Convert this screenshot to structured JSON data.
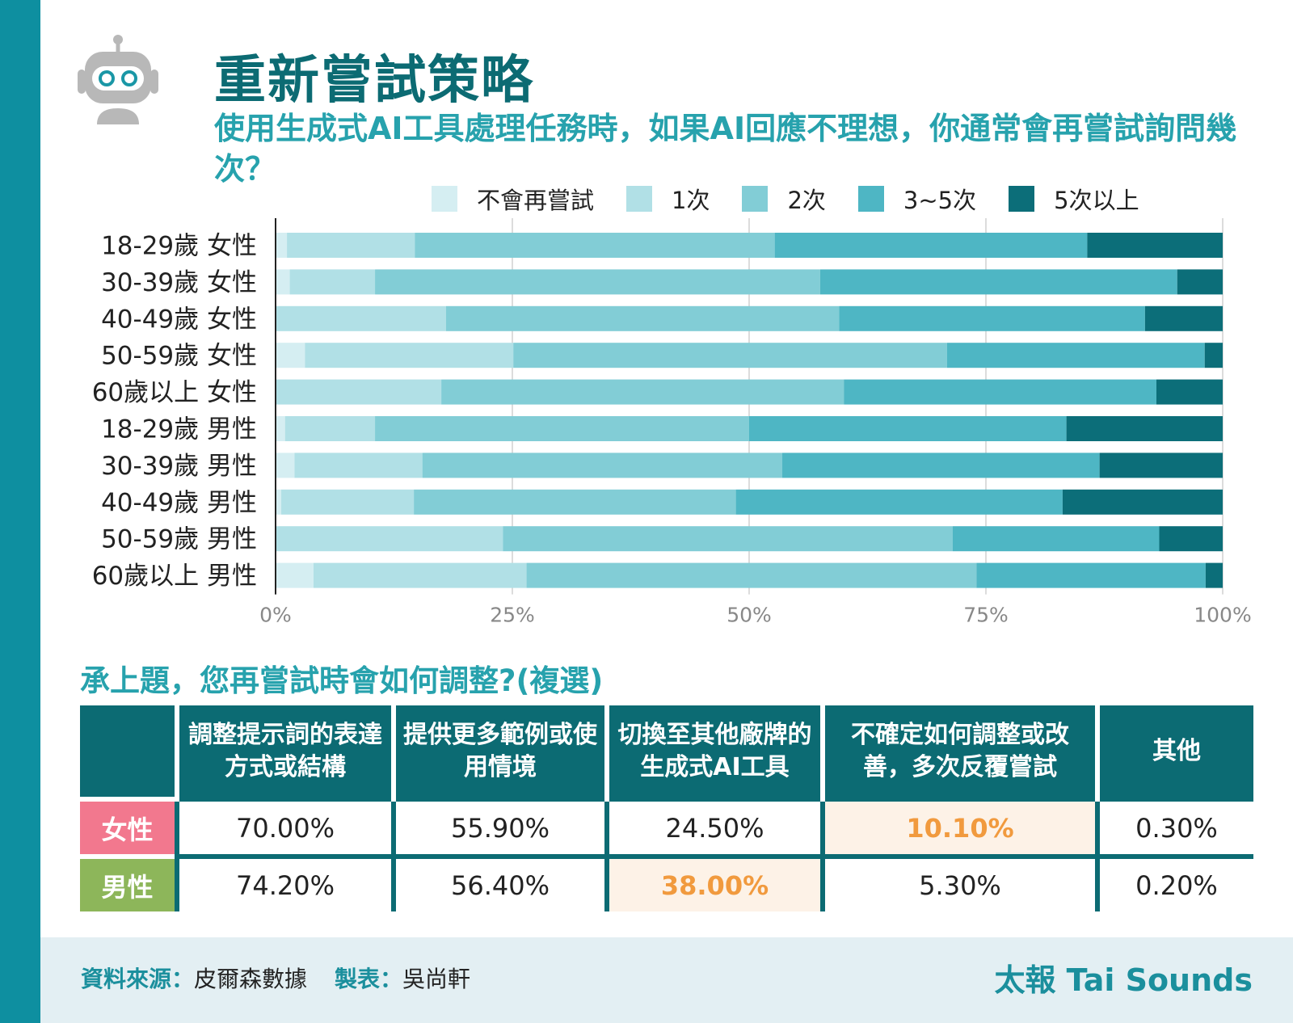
{
  "header": {
    "title": "重新嘗試策略",
    "subtitle": "使用生成式AI工具處理任務時，如果AI回應不理想，你通常會再嘗試詢問幾次？"
  },
  "colors": {
    "sidebar": "#0e8fa0",
    "title": "#0c6b73",
    "accent": "#27a2ad",
    "female": "#f2788e",
    "male": "#8db65a",
    "highlight_bg": "#fdf2e7",
    "highlight_text": "#f19a3e"
  },
  "icons": {
    "robot": "robot-icon"
  },
  "chart_data": {
    "type": "bar",
    "orientation": "horizontal",
    "stacked": true,
    "categories": [
      "18-29歲 女性",
      "30-39歲 女性",
      "40-49歲 女性",
      "50-59歲 女性",
      "60歲以上 女性",
      "18-29歲 男性",
      "30-39歲 男性",
      "40-49歲 男性",
      "50-59歲 男性",
      "60歲以上 男性"
    ],
    "series": [
      {
        "name": "不會再嘗試",
        "color": "#d5eef2",
        "values": [
          1.2,
          1.5,
          0,
          3.1,
          0,
          1.0,
          2.0,
          0.6,
          0,
          4.0
        ]
      },
      {
        "name": "1次",
        "color": "#b1e0e6",
        "values": [
          13.5,
          9.0,
          18.0,
          22.0,
          17.5,
          9.5,
          13.5,
          14.0,
          24.0,
          22.5
        ]
      },
      {
        "name": "2次",
        "color": "#82cdd6",
        "values": [
          38.0,
          47.0,
          41.5,
          45.8,
          42.5,
          39.5,
          38.0,
          34.0,
          47.5,
          47.5
        ]
      },
      {
        "name": "3~5次",
        "color": "#4eb6c4",
        "values": [
          33.0,
          37.7,
          32.3,
          27.2,
          33.0,
          33.5,
          33.5,
          34.5,
          21.8,
          24.2
        ]
      },
      {
        "name": "5次以上",
        "color": "#0c6e79",
        "values": [
          14.3,
          4.8,
          8.2,
          1.9,
          7.0,
          16.5,
          13.0,
          16.9,
          6.7,
          1.8
        ]
      }
    ],
    "xlim": [
      0,
      100
    ],
    "xticks": [
      "0%",
      "25%",
      "50%",
      "75%",
      "100%"
    ],
    "grid": true,
    "legend_position": "top"
  },
  "table": {
    "title": "承上題，您再嘗試時會如何調整?(複選)",
    "headers": [
      "",
      "調整提示詞的表達方式或結構",
      "提供更多範例或使用情境",
      "切換至其他廠牌的生成式AI工具",
      "不確定如何調整或改善，多次反覆嘗試",
      "其他"
    ],
    "rows": [
      {
        "label": "女性",
        "values": [
          "70.00%",
          "55.90%",
          "24.50%",
          "10.10%",
          "0.30%"
        ]
      },
      {
        "label": "男性",
        "values": [
          "74.20%",
          "56.40%",
          "38.00%",
          "5.30%",
          "0.20%"
        ]
      }
    ]
  },
  "footer": {
    "source_label": "資料來源：",
    "source": "皮爾森數據",
    "maker_label": "製表：",
    "maker": "吳尚軒",
    "brand": "太報 Tai Sounds"
  }
}
